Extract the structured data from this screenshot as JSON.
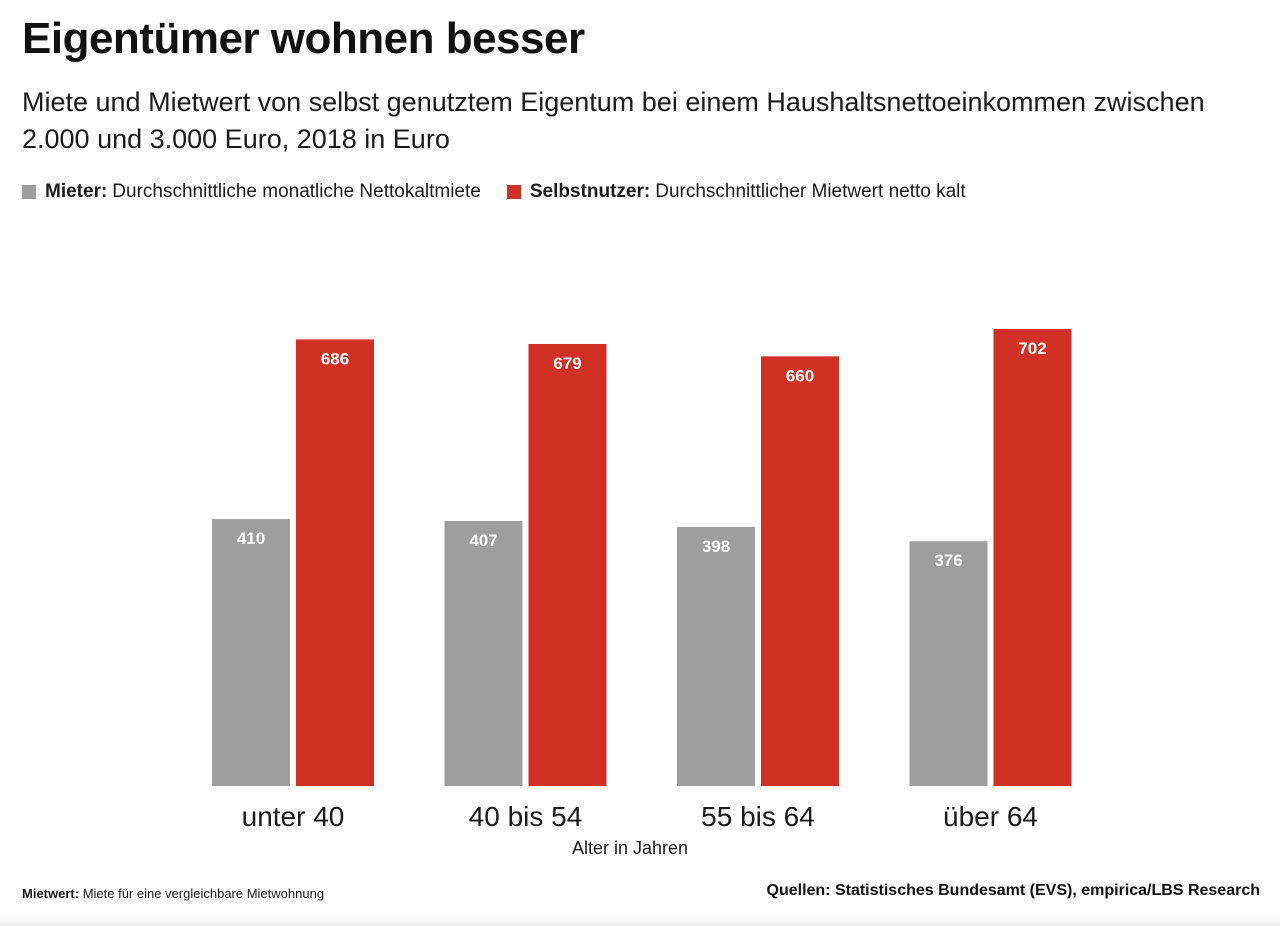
{
  "title": "Eigentümer wohnen besser",
  "subtitle": "Miete und Mietwert von selbst genutztem Eigentum bei einem Haushaltsnettoeinkommen zwischen 2.000 und 3.000 Euro, 2018 in Euro",
  "legend": [
    {
      "bold": "Mieter:",
      "text": "Durchschnittliche monatliche Nettokaltmiete",
      "color": "#9d9e9d"
    },
    {
      "bold": "Selbstnutzer:",
      "text": "Durchschnittlicher Mietwert netto kalt",
      "color": "#d13024"
    }
  ],
  "footer": {
    "note_bold": "Mietwert:",
    "note_text": "Miete für eine vergleichbare Mietwohnung",
    "source": "Quellen: Statistisches Bundesamt (EVS), empirica/LBS Research"
  },
  "chart_data": {
    "type": "bar",
    "title": "Eigentümer wohnen besser",
    "xlabel": "Alter in Jahren",
    "ylabel": "",
    "categories": [
      "unter 40",
      "40 bis 54",
      "55 bis 64",
      "über 64"
    ],
    "series": [
      {
        "name": "Mieter",
        "color": "#9d9e9d",
        "values": [
          410,
          407,
          398,
          376
        ]
      },
      {
        "name": "Selbstnutzer",
        "color": "#d13024",
        "values": [
          686,
          679,
          660,
          702
        ]
      }
    ],
    "ylim": [
      0,
      702
    ],
    "grid": false,
    "legend_position": "top-left",
    "data_labels": true
  }
}
